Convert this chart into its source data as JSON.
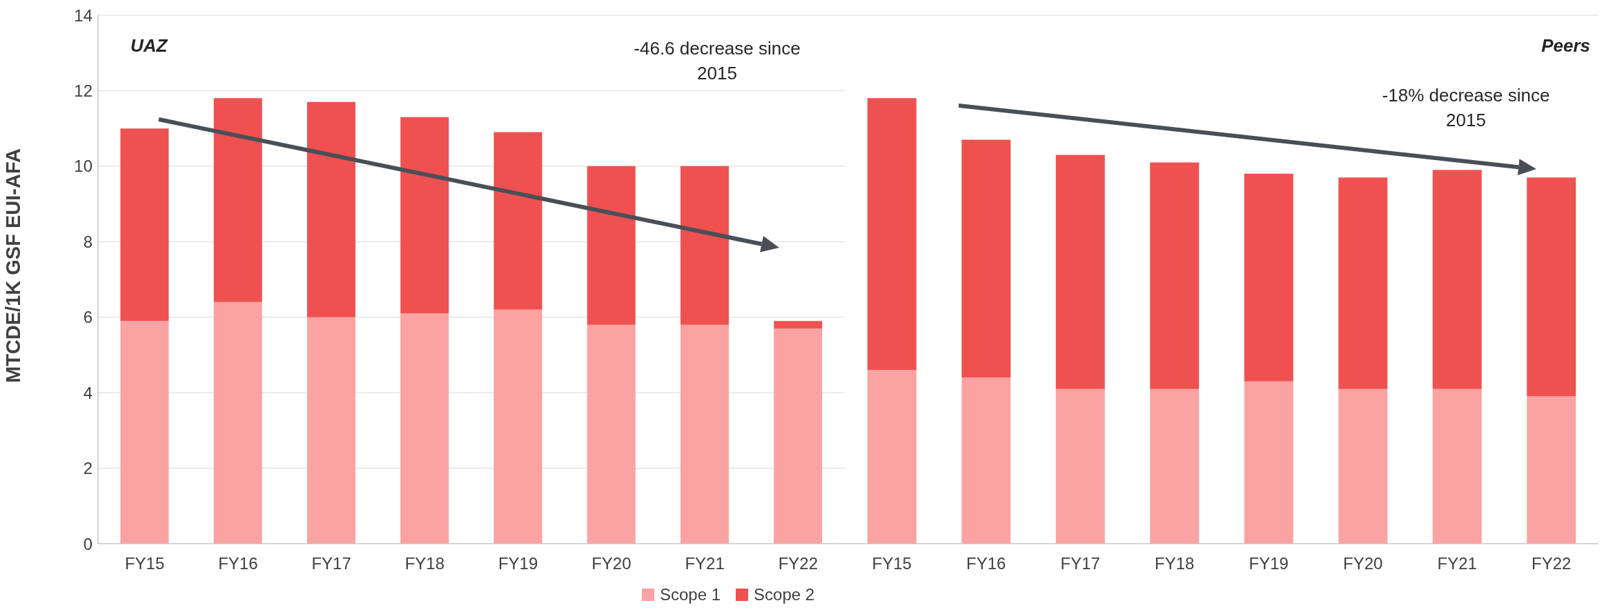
{
  "chart_data": [
    {
      "type": "bar",
      "stacked": true,
      "ylabel": "MTCDE/1K GSF EUI-AFA",
      "categories": [
        "FY15",
        "FY16",
        "FY17",
        "FY18",
        "FY19",
        "FY20",
        "FY21",
        "FY22"
      ],
      "series": [
        {
          "name": "Scope 1",
          "color": "#fba2a2",
          "values": [
            5.9,
            6.4,
            6.0,
            6.1,
            6.2,
            5.8,
            5.8,
            5.7
          ]
        },
        {
          "name": "Scope 2",
          "color": "#ef5151",
          "values": [
            5.1,
            5.4,
            5.7,
            5.2,
            4.7,
            4.2,
            4.2,
            0.2
          ]
        }
      ],
      "ylim": [
        0,
        14
      ],
      "yticks": [
        0,
        2,
        4,
        6,
        8,
        10,
        12,
        14
      ],
      "grid": "y",
      "legend": "bottom",
      "annotations": [
        "UAZ",
        "-46.6 decrease since 2015"
      ]
    },
    {
      "type": "bar",
      "stacked": true,
      "categories": [
        "FY15",
        "FY16",
        "FY17",
        "FY18",
        "FY19",
        "FY20",
        "FY21",
        "FY22"
      ],
      "series": [
        {
          "color": "#fba2a2",
          "values": [
            4.6,
            4.4,
            4.1,
            4.1,
            4.3,
            4.1,
            4.1,
            3.9
          ]
        },
        {
          "color": "#ef5151",
          "values": [
            7.2,
            6.3,
            6.2,
            6.0,
            5.5,
            5.6,
            5.8,
            5.8
          ]
        }
      ],
      "ylim": [
        0,
        14
      ],
      "yticks": [
        0,
        2,
        4,
        6,
        8,
        10,
        12,
        14
      ],
      "grid": "y",
      "tick_labels": "x",
      "annotations": [
        "Peers",
        "-18%  decrease since 2015"
      ]
    }
  ]
}
